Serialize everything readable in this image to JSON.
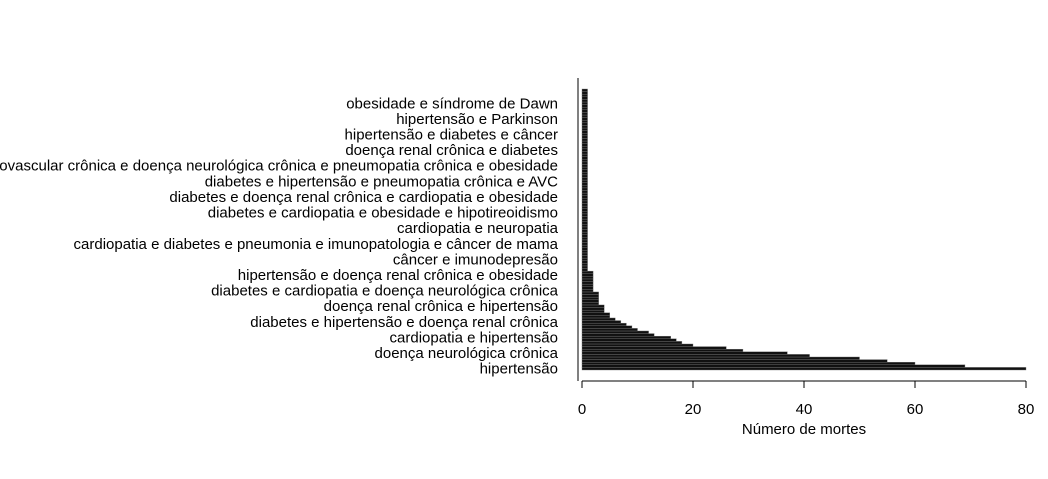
{
  "chart_data": {
    "type": "barh",
    "xlabel": "Número de mortes",
    "xlim": [
      0,
      80
    ],
    "xticks": [
      0,
      20,
      40,
      60,
      80
    ],
    "color": "#111111",
    "categories": [
      "hipertensão",
      null,
      null,
      null,
      null,
      null,
      "doença neurológica crônica",
      null,
      null,
      null,
      null,
      null,
      "cardiopatia e hipertensão",
      null,
      null,
      null,
      null,
      null,
      "diabetes e hipertensão e doença renal crônica",
      null,
      null,
      null,
      null,
      null,
      "doença renal crônica e hipertensão",
      null,
      null,
      null,
      null,
      null,
      "diabetes e cardiopatia e doença neurológica crônica",
      null,
      null,
      null,
      null,
      null,
      "hipertensão e doença renal crônica e obesidade",
      null,
      null,
      null,
      null,
      null,
      "câncer e imunodepresão",
      null,
      null,
      null,
      null,
      null,
      "cardiopatia e diabetes e pneumonia e imunopatologia e câncer de mama",
      null,
      null,
      null,
      null,
      null,
      "cardiopatia e neuropatia",
      null,
      null,
      null,
      null,
      null,
      "diabetes e cardiopatia e obesidade e hipotireoidismo",
      null,
      null,
      null,
      null,
      null,
      "diabetes e doença renal crônica  e cardiopatia e obesidade",
      null,
      null,
      null,
      null,
      null,
      "diabetes e hipertensão e pneumopatia crônica e AVC",
      null,
      null,
      null,
      null,
      null,
      "doença cardiovascular crônica e doença neurológica crônica e pneumopatia crônica e obesidade",
      null,
      null,
      null,
      null,
      null,
      "doença renal crônica e diabetes",
      null,
      null,
      null,
      null,
      null,
      "hipertensão e diabetes e câncer",
      null,
      null,
      null,
      null,
      null,
      "hipertensão e Parkinson",
      null,
      null,
      null,
      null,
      null,
      "obesidade e síndrome de Dawn",
      null,
      null,
      null,
      null,
      null
    ],
    "values": [
      80,
      69,
      60,
      55,
      50,
      41,
      37,
      29,
      26,
      20,
      18,
      17,
      16,
      13,
      12,
      10,
      9,
      8,
      7,
      6,
      5,
      5,
      4,
      4,
      4,
      3,
      3,
      3,
      3,
      3,
      2,
      2,
      2,
      2,
      2,
      2,
      2,
      2,
      1,
      1,
      1,
      1,
      1,
      1,
      1,
      1,
      1,
      1,
      1,
      1,
      1,
      1,
      1,
      1,
      1,
      1,
      1,
      1,
      1,
      1,
      1,
      1,
      1,
      1,
      1,
      1,
      1,
      1,
      1,
      1,
      1,
      1,
      1,
      1,
      1,
      1,
      1,
      1,
      1,
      1,
      1,
      1,
      1,
      1,
      1,
      1,
      1,
      1,
      1,
      1,
      1,
      1,
      1,
      1,
      1,
      1,
      1,
      1,
      1,
      1,
      1,
      1,
      1,
      1,
      1,
      1,
      1,
      1
    ]
  }
}
